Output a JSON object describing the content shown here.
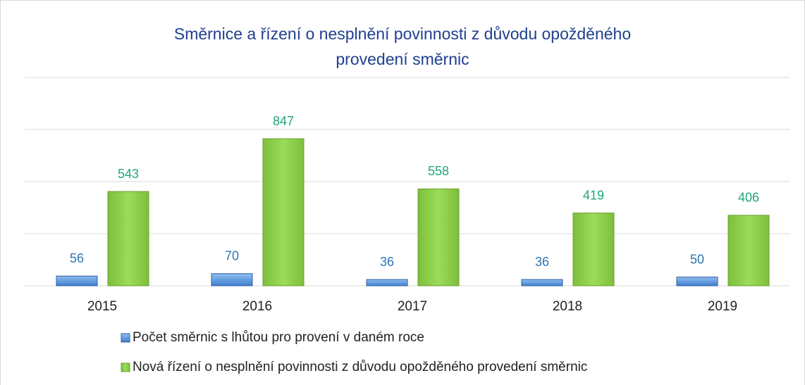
{
  "chart_data": {
    "type": "bar",
    "title": [
      "Směrnice a řízení o nesplnění povinnosti z důvodu opožděného",
      "provedení směrnic"
    ],
    "categories": [
      "2015",
      "2016",
      "2017",
      "2018",
      "2019"
    ],
    "series": [
      {
        "name": "Počet směrnic s lhůtou pro provení v daném roce",
        "color": "#5b9bd5",
        "label_color": "#2e75b6",
        "values": [
          56,
          70,
          36,
          36,
          50
        ]
      },
      {
        "name": "Nová řízení o nesplnění povinnosti z důvodu opožděného provedení směrnic",
        "color": "#92d050",
        "label_color": "#1fa67a",
        "values": [
          543,
          847,
          558,
          419,
          406
        ]
      }
    ],
    "ylim": [
      0,
      1200
    ],
    "yticks": [
      0,
      300,
      600,
      900,
      1200
    ],
    "grid": true
  }
}
